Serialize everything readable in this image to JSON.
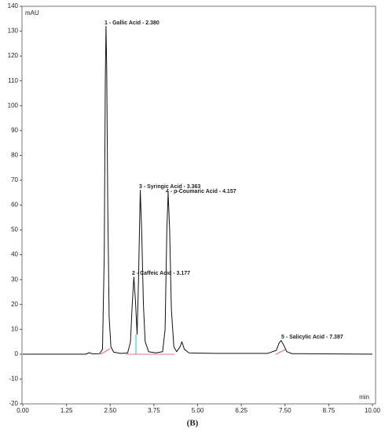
{
  "chart_data": {
    "type": "line",
    "y_label": "mAU",
    "x_label": "min",
    "caption": "(B)",
    "annotations": [
      "1 - Gallic Acid - 2.380",
      "2 - Caffeic Acid - 3.177",
      "3 - Syringic Acid - 3.363",
      "4 - p-Coumaric Acid - 4.157",
      "5 - Salicylic Acid - 7.387"
    ],
    "series": [
      {
        "color": "#111111",
        "x": [
          0,
          1.8,
          1.9,
          2.0,
          2.2,
          2.28,
          2.33,
          2.36,
          2.38,
          2.4,
          2.43,
          2.47,
          2.52,
          2.6,
          2.8,
          3.0,
          3.08,
          3.13,
          3.177,
          3.22,
          3.27,
          3.31,
          3.36,
          3.4,
          3.45,
          3.5,
          3.6,
          3.8,
          4.0,
          4.07,
          4.12,
          4.157,
          4.2,
          4.25,
          4.32,
          4.4,
          4.5,
          4.55,
          4.62,
          4.75,
          5.5,
          7.0,
          7.25,
          7.33,
          7.387,
          7.45,
          7.55,
          7.7,
          10
        ],
        "values": [
          0,
          0,
          0.6,
          0.1,
          0.2,
          2,
          40,
          110,
          132,
          115,
          60,
          15,
          3,
          0.8,
          0.3,
          0.5,
          5,
          20,
          31,
          22,
          8,
          30,
          66,
          50,
          20,
          5,
          1,
          0.5,
          1,
          10,
          50,
          65,
          50,
          18,
          3,
          1,
          3,
          5,
          2,
          0.5,
          0.3,
          0.3,
          1.5,
          4.5,
          5.5,
          4,
          1,
          0.2,
          0
        ]
      }
    ],
    "xlim": [
      0,
      10
    ],
    "xticks": [
      {
        "value": 0,
        "label": "0.00"
      },
      {
        "value": 1.25,
        "label": "1.25"
      },
      {
        "value": 2.5,
        "label": "2.50"
      },
      {
        "value": 3.75,
        "label": "3.75"
      },
      {
        "value": 5,
        "label": "5.00"
      },
      {
        "value": 6.25,
        "label": "6.25"
      },
      {
        "value": 7.5,
        "label": "7.50"
      },
      {
        "value": 8.75,
        "label": "8.75"
      },
      {
        "value": 10,
        "label": "10.00"
      }
    ],
    "ylim": [
      -20,
      140
    ],
    "yticks": [
      -20,
      -10,
      0,
      10,
      20,
      30,
      40,
      50,
      60,
      70,
      80,
      90,
      100,
      110,
      120,
      130,
      140
    ]
  }
}
